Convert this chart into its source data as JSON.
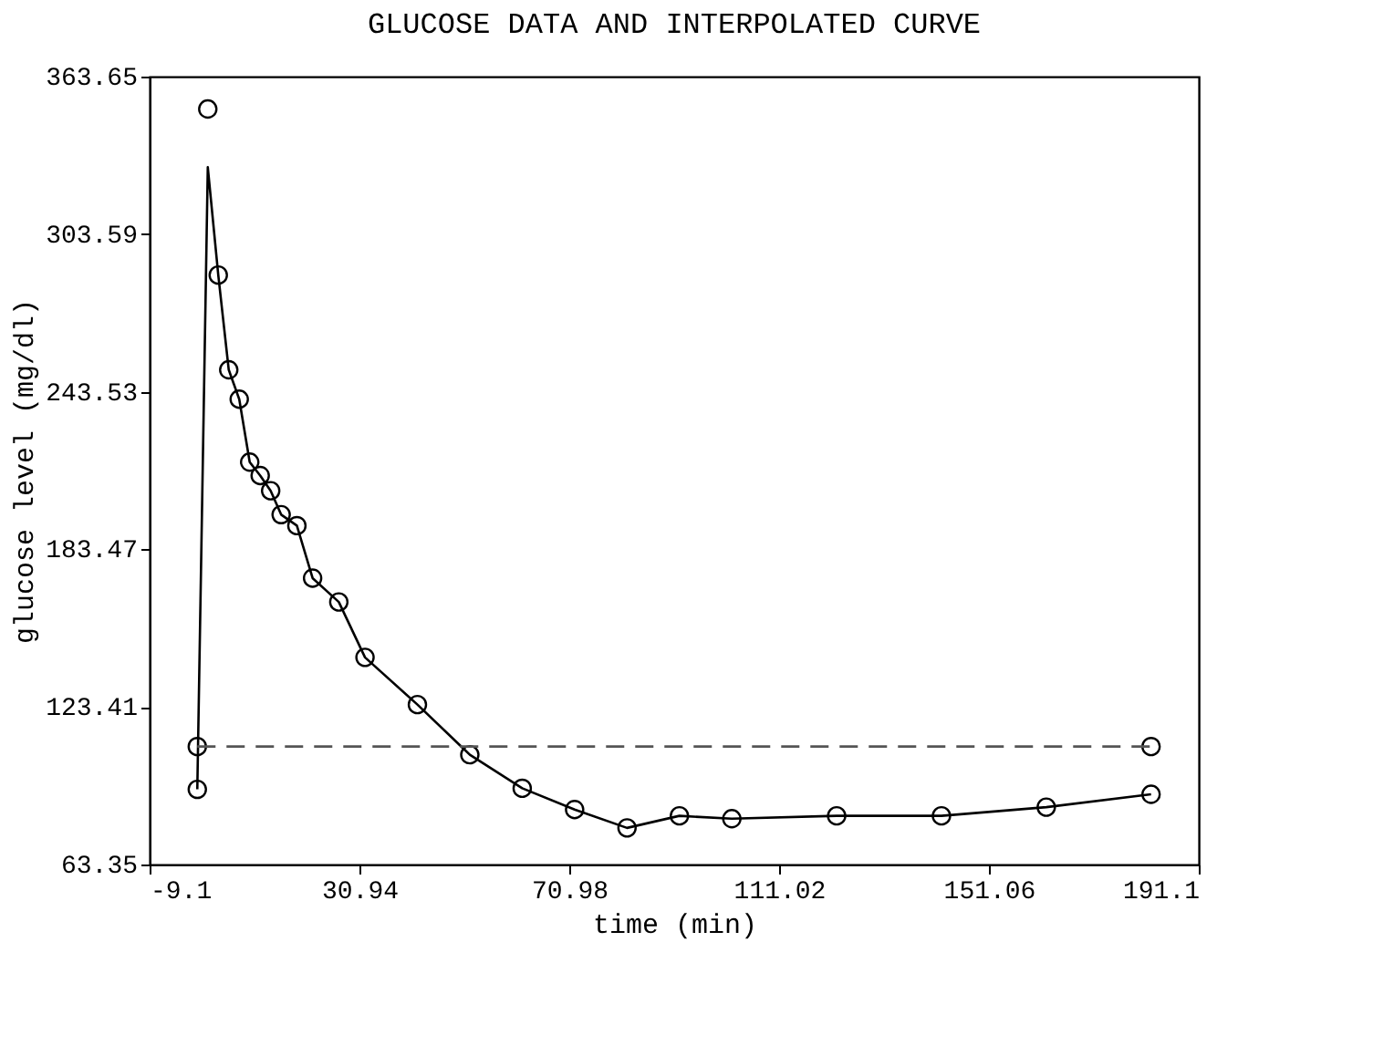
{
  "chart_data": {
    "type": "line",
    "title": "GLUCOSE DATA AND INTERPOLATED CURVE",
    "xlabel": "time (min)",
    "ylabel": "glucose level (mg/dl)",
    "xlim": [
      -9.1,
      191.1
    ],
    "xticks": [
      -9.1,
      30.94,
      70.98,
      111.02,
      151.06,
      191.1
    ],
    "ylim": [
      63.35,
      363.65
    ],
    "yticks": [
      63.35,
      123.41,
      183.47,
      243.53,
      303.59,
      363.65
    ],
    "grid": false,
    "series": [
      {
        "type": "scatter",
        "marker": "circle",
        "color": "#000000",
        "x": [
          0,
          0,
          2,
          4,
          6,
          8,
          10,
          12,
          14,
          16,
          19,
          22,
          27,
          32,
          42,
          52,
          62,
          72,
          82,
          92,
          102,
          122,
          142,
          162,
          182,
          182
        ],
        "values": [
          92,
          108.3,
          351.3,
          288,
          251.9,
          240.7,
          216.7,
          211.6,
          205.8,
          196.7,
          192.5,
          172.5,
          163.4,
          142.3,
          124.3,
          105.2,
          92.4,
          84.3,
          77.3,
          81.9,
          80.8,
          81.9,
          81.9,
          85.2,
          90.1,
          108.3
        ]
      },
      {
        "marker": "none",
        "line_style": "solid",
        "color": "#000000",
        "x": [
          0,
          2,
          4,
          6,
          8,
          10,
          12,
          14,
          16,
          19,
          22,
          27,
          32,
          42,
          52,
          62,
          72,
          82,
          92,
          102,
          122,
          142,
          162,
          182
        ],
        "values": [
          92,
          329.1,
          288,
          251.9,
          240.7,
          216.7,
          211.6,
          205.8,
          196.7,
          192.5,
          172.5,
          163.4,
          142.3,
          124.3,
          105.2,
          92.4,
          84.3,
          77.3,
          81.9,
          80.8,
          81.9,
          81.9,
          85.2,
          90.1
        ]
      },
      {
        "type": "line",
        "marker": "none",
        "line_style": "dashed",
        "color": "#555555",
        "x": [
          0,
          182
        ],
        "values": [
          108.3,
          108.3
        ]
      }
    ]
  }
}
